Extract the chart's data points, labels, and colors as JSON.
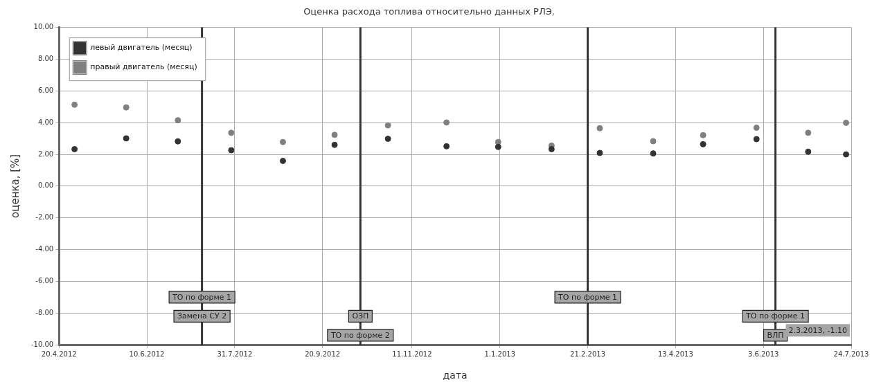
{
  "chart_data": {
    "type": "scatter",
    "title": "Оценка расхода топлива относительно данных РЛЭ.",
    "xlabel": "дата",
    "ylabel": "оценка, [%]",
    "x": [
      "2012-04-29",
      "2012-05-29",
      "2012-06-28",
      "2012-07-29",
      "2012-08-28",
      "2012-09-27",
      "2012-10-28",
      "2012-12-01",
      "2012-12-31",
      "2013-01-31",
      "2013-02-28",
      "2013-03-31",
      "2013-04-29",
      "2013-05-30",
      "2013-06-29",
      "2013-07-21"
    ],
    "series": [
      {
        "name": "левый двигатель (месяц)",
        "color": "#333333",
        "values": [
          2.33,
          3.01,
          2.82,
          2.26,
          1.59,
          2.6,
          2.98,
          2.51,
          2.47,
          2.33,
          2.09,
          2.06,
          2.64,
          2.96,
          2.17,
          2.0
        ]
      },
      {
        "name": "правый двигатель (месяц)",
        "color": "#808080",
        "values": [
          5.13,
          4.96,
          4.15,
          3.36,
          2.78,
          3.23,
          3.83,
          4.01,
          2.78,
          2.55,
          3.65,
          2.83,
          3.21,
          3.68,
          3.36,
          3.99
        ]
      }
    ],
    "xlim": [
      "2012-04-20",
      "2013-07-24"
    ],
    "xticks": [
      {
        "value": "2012-04-20",
        "label": "20.4.2012"
      },
      {
        "value": "2012-06-10",
        "label": "10.6.2012"
      },
      {
        "value": "2012-07-31",
        "label": "31.7.2012"
      },
      {
        "value": "2012-09-20",
        "label": "20.9.2012"
      },
      {
        "value": "2012-11-11",
        "label": "11.11.2012"
      },
      {
        "value": "2013-01-01",
        "label": "1.1.2013"
      },
      {
        "value": "2013-02-21",
        "label": "21.2.2013"
      },
      {
        "value": "2013-04-13",
        "label": "13.4.2013"
      },
      {
        "value": "2013-06-03",
        "label": "3.6.2013"
      },
      {
        "value": "2013-07-24",
        "label": "24.7.2013"
      }
    ],
    "ylim": [
      -10,
      10
    ],
    "yticks": [
      {
        "value": -10,
        "label": "-10.00"
      },
      {
        "value": -8,
        "label": "-8.00"
      },
      {
        "value": -6,
        "label": "-6.00"
      },
      {
        "value": -4,
        "label": "-4.00"
      },
      {
        "value": -2,
        "label": "-2.00"
      },
      {
        "value": 0,
        "label": "0.00"
      },
      {
        "value": 2,
        "label": "2.00"
      },
      {
        "value": 4,
        "label": "4.00"
      },
      {
        "value": 6,
        "label": "6.00"
      },
      {
        "value": 8,
        "label": "8.00"
      },
      {
        "value": 10,
        "label": "10.00"
      }
    ],
    "ref_lines": [
      {
        "axis": "x",
        "value": "2012-07-12",
        "color": "#333333"
      },
      {
        "axis": "x",
        "value": "2012-10-12",
        "color": "#333333"
      },
      {
        "axis": "x",
        "value": "2013-02-21",
        "color": "#333333"
      },
      {
        "axis": "x",
        "value": "2013-06-10",
        "color": "#333333"
      }
    ],
    "annotations": [
      {
        "text": "ТО по форме 1",
        "x": "2012-07-12",
        "y": -7
      },
      {
        "text": "Замена СУ 2",
        "x": "2012-07-12",
        "y": -8.2
      },
      {
        "text": "ОЗП",
        "x": "2012-10-12",
        "y": -8.2
      },
      {
        "text": "ТО по форме 2",
        "x": "2012-10-12",
        "y": -9.4
      },
      {
        "text": "ТО по форме 1",
        "x": "2013-02-21",
        "y": -7
      },
      {
        "text": "ТО по форме 1",
        "x": "2013-06-10",
        "y": -8.2
      },
      {
        "text": "ВЛП",
        "x": "2013-06-10",
        "y": -9.4
      },
      "2.3.2013, -1.10"
    ],
    "grid": true,
    "legend": "top left",
    "marker": "circle"
  }
}
